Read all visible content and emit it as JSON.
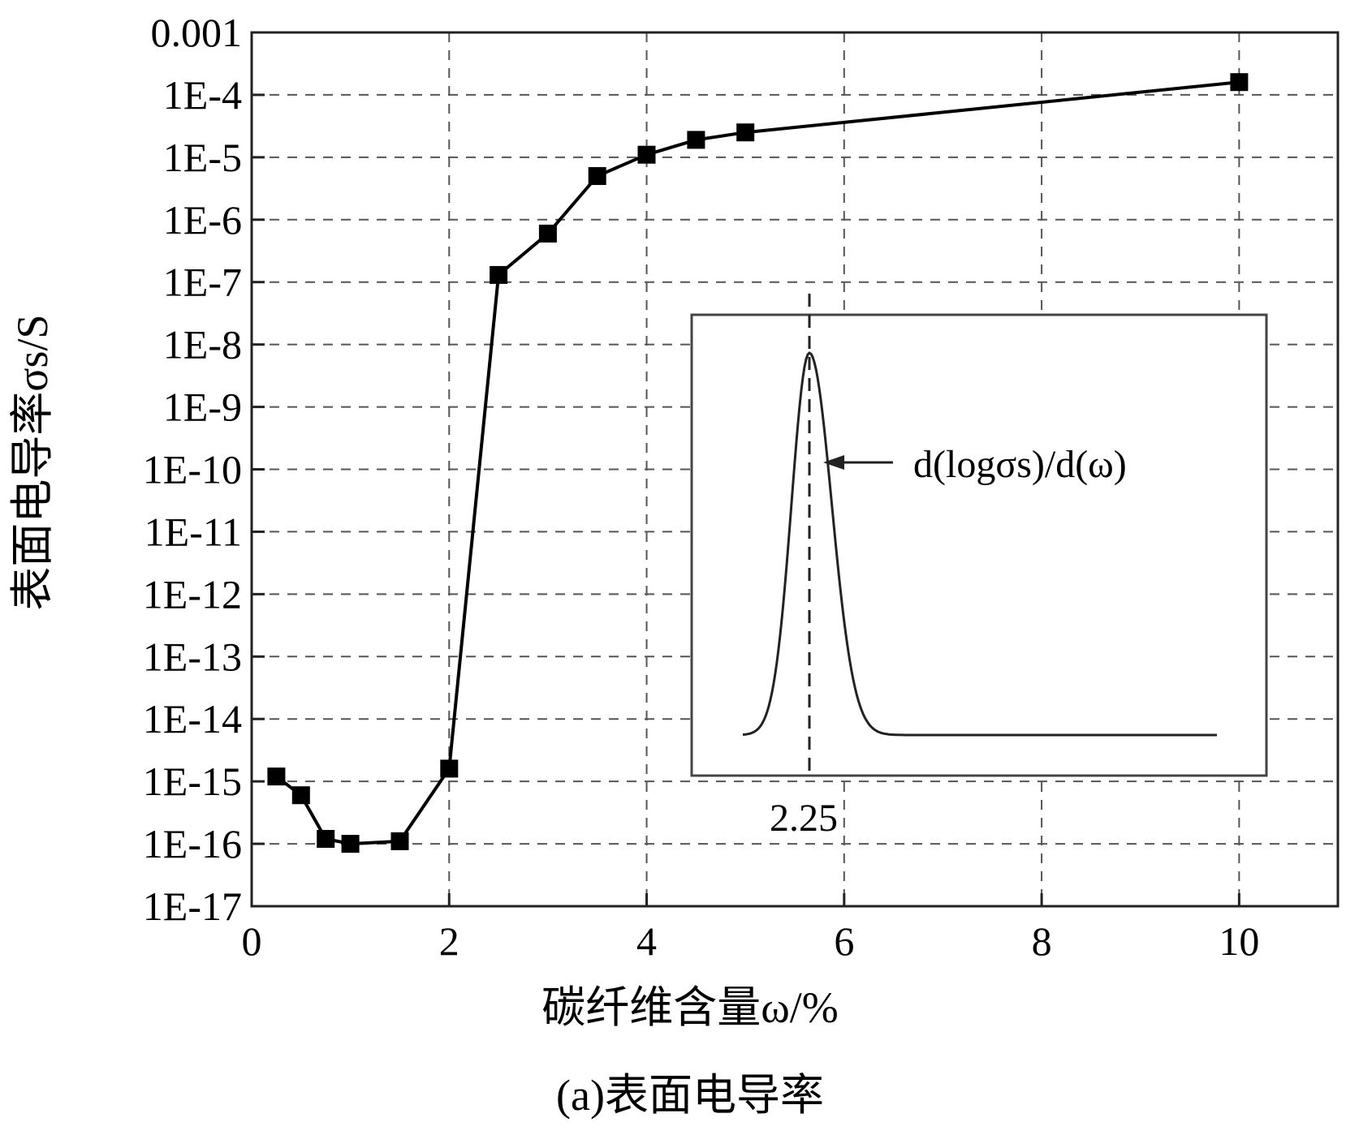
{
  "chart_data": {
    "type": "line",
    "title": "",
    "caption": "(a)表面电导率",
    "xlabel": "碳纤维含量ω/%",
    "ylabel": "表面电导率σs/S",
    "y_scale": "log",
    "xlim": [
      0,
      11
    ],
    "ylim": [
      "1E-17",
      "0.001"
    ],
    "x_ticks": [
      "0",
      "2",
      "4",
      "6",
      "8",
      "10"
    ],
    "y_ticks": [
      "1E-17",
      "1E-16",
      "1E-15",
      "1E-14",
      "1E-13",
      "1E-12",
      "1E-11",
      "1E-10",
      "1E-9",
      "1E-8",
      "1E-7",
      "1E-6",
      "1E-5",
      "1E-4",
      "0.001"
    ],
    "grid": true,
    "marker": "square",
    "color": "#000000",
    "series": [
      {
        "x": [
          0.25,
          0.5,
          0.75,
          1.0,
          1.5,
          2.0,
          2.5,
          3.0,
          3.5,
          4.0,
          4.5,
          5.0,
          10.0
        ],
        "y": [
          1.2e-15,
          6e-16,
          1.2e-16,
          1e-16,
          1.1e-16,
          1.6e-15,
          1.3e-07,
          6e-07,
          5e-06,
          1.1e-05,
          1.9e-05,
          2.5e-05,
          0.00016
        ]
      }
    ],
    "inset": {
      "type": "line",
      "curve_label": "d(logσs)/d(ω)",
      "peak_label": "2.25",
      "peak_x": 2.25
    }
  }
}
